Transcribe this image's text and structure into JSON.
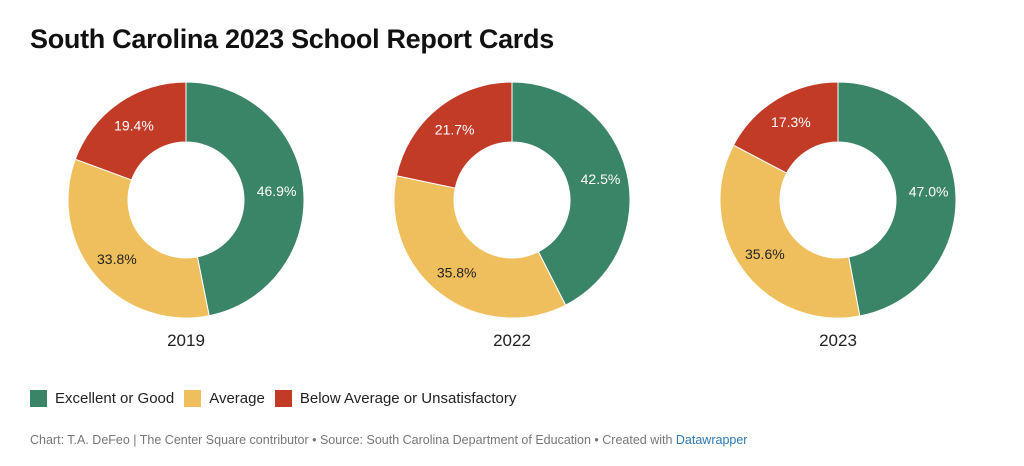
{
  "title": "South Carolina 2023 School Report Cards",
  "colors": {
    "excellent": "#3a8467",
    "average": "#efbf5d",
    "below": "#c23b27"
  },
  "legend": [
    {
      "label": "Excellent or Good",
      "color": "#3a8467"
    },
    {
      "label": "Average",
      "color": "#efbf5d"
    },
    {
      "label": "Below Average or Unsatisfactory",
      "color": "#c23b27"
    }
  ],
  "footer": {
    "text": "Chart: T.A. DeFeo | The Center Square contributor • Source: South Carolina Department of Education • Created with ",
    "link": "Datawrapper"
  },
  "chart_data": [
    {
      "type": "pie",
      "title": "2019",
      "categories": [
        "Excellent or Good",
        "Average",
        "Below Average or Unsatisfactory"
      ],
      "values": [
        46.9,
        33.8,
        19.4
      ],
      "labels": [
        "46.9%",
        "33.8%",
        "19.4%"
      ]
    },
    {
      "type": "pie",
      "title": "2022",
      "categories": [
        "Excellent or Good",
        "Average",
        "Below Average or Unsatisfactory"
      ],
      "values": [
        42.5,
        35.8,
        21.7
      ],
      "labels": [
        "42.5%",
        "35.8%",
        "21.7%"
      ]
    },
    {
      "type": "pie",
      "title": "2023",
      "categories": [
        "Excellent or Good",
        "Average",
        "Below Average or Unsatisfactory"
      ],
      "values": [
        47.0,
        35.6,
        17.3
      ],
      "labels": [
        "47.0%",
        "35.6%",
        "17.3%"
      ]
    }
  ]
}
